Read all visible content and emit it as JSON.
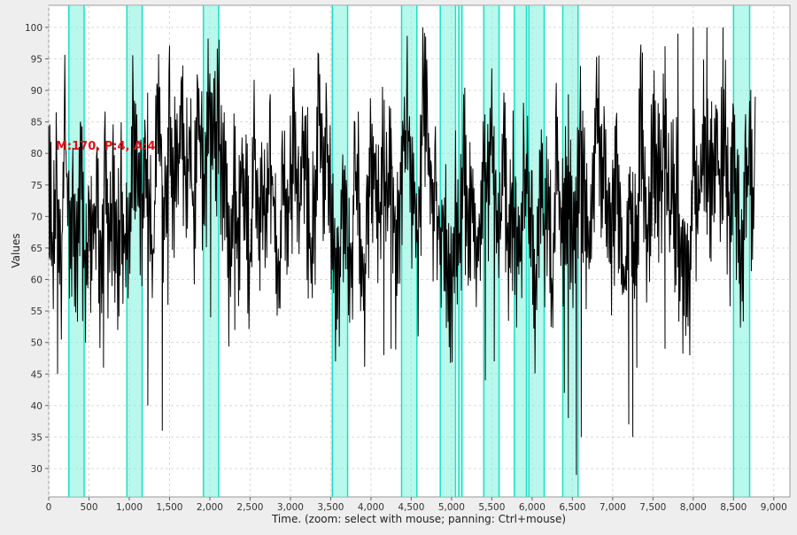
{
  "chart_data": {
    "type": "line",
    "title": "",
    "xlabel": "Time. (zoom: select with mouse; panning: Ctrl+mouse)",
    "ylabel": "Values",
    "xlim": [
      0,
      9200
    ],
    "ylim": [
      25.5,
      103.5
    ],
    "x_ticks": [
      0,
      500,
      1000,
      1500,
      2000,
      2500,
      3000,
      3500,
      4000,
      4500,
      5000,
      5500,
      6000,
      6500,
      7000,
      7500,
      8000,
      8500,
      9000
    ],
    "x_tick_labels": [
      "0",
      "500",
      "1,000",
      "1,500",
      "2,000",
      "2,500",
      "3,000",
      "3,500",
      "4,000",
      "4,500",
      "5,000",
      "5,500",
      "6,000",
      "6,500",
      "7,000",
      "7,500",
      "8,000",
      "8,500",
      "9,000"
    ],
    "y_ticks": [
      30,
      35,
      40,
      45,
      50,
      55,
      60,
      65,
      70,
      75,
      80,
      85,
      90,
      95,
      100
    ],
    "y_tick_labels": [
      "30",
      "35",
      "40",
      "45",
      "50",
      "55",
      "60",
      "65",
      "70",
      "75",
      "80",
      "85",
      "90",
      "95",
      "100"
    ],
    "grid": true,
    "annotation": "M:170, P:4, A:4",
    "highlight_intervals": [
      [
        250,
        440
      ],
      [
        970,
        1160
      ],
      [
        1920,
        2110
      ],
      [
        3520,
        3710
      ],
      [
        4380,
        4570
      ],
      [
        4860,
        5050
      ],
      [
        5090,
        5130
      ],
      [
        5400,
        5590
      ],
      [
        5780,
        5930
      ],
      [
        5960,
        6150
      ],
      [
        6380,
        6570
      ],
      [
        8500,
        8700
      ]
    ],
    "series": [
      {
        "x_start": 0,
        "x_step": 50,
        "values": [
          80,
          62,
          74,
          58,
          84,
          66,
          71,
          60,
          79,
          55,
          69,
          63,
          76,
          57,
          82,
          64,
          70,
          59,
          75,
          61,
          67,
          86,
          74,
          68,
          81,
          72,
          62,
          89,
          77,
          65,
          84,
          71,
          79,
          88,
          74,
          82,
          68,
          86,
          77,
          73,
          89,
          80,
          84,
          76,
          70,
          62,
          74,
          66,
          78,
          71,
          60,
          83,
          69,
          74,
          67,
          80,
          72,
          57,
          77,
          66,
          73,
          86,
          68,
          79,
          75,
          62,
          70,
          88,
          74,
          81,
          69,
          64,
          58,
          72,
          66,
          60,
          76,
          70,
          54,
          67,
          82,
          75,
          68,
          79,
          72,
          84,
          62,
          73,
          80,
          86,
          77,
          70,
          65,
          90,
          83,
          71,
          76,
          64,
          69,
          61,
          56,
          72,
          63,
          80,
          67,
          74,
          59,
          66,
          78,
          70,
          85,
          72,
          66,
          77,
          62,
          74,
          69,
          61,
          80,
          71,
          64,
          57,
          76,
          66,
          71,
          58,
          83,
          67,
          73,
          78,
          62,
          70,
          81,
          74,
          60,
          73,
          87,
          80,
          76,
          70,
          64,
          81,
          66,
          58,
          74,
          63,
          69,
          84,
          72,
          66,
          79,
          76,
          71,
          85,
          66,
          74,
          70,
          63,
          62,
          57,
          80,
          68,
          75,
          82,
          71,
          79,
          77,
          74,
          84,
          66,
          78,
          71,
          60,
          74,
          81,
          68
        ],
        "spikes": [
          [
            110,
            45
          ],
          [
            680,
            46
          ],
          [
            1230,
            40
          ],
          [
            1410,
            36
          ],
          [
            1480,
            56
          ],
          [
            2010,
            54
          ],
          [
            2310,
            52
          ],
          [
            3560,
            47
          ],
          [
            4160,
            48
          ],
          [
            4250,
            49
          ],
          [
            5420,
            44
          ],
          [
            5530,
            47
          ],
          [
            6400,
            42
          ],
          [
            6450,
            38
          ],
          [
            6550,
            29
          ],
          [
            6610,
            35
          ],
          [
            7200,
            37
          ],
          [
            7250,
            35
          ],
          [
            7300,
            46
          ],
          [
            7370,
            96
          ],
          [
            7650,
            49
          ],
          [
            7810,
            99
          ],
          [
            8000,
            100
          ],
          [
            8170,
            100
          ],
          [
            8370,
            100
          ],
          [
            8770,
            89
          ]
        ]
      }
    ]
  }
}
